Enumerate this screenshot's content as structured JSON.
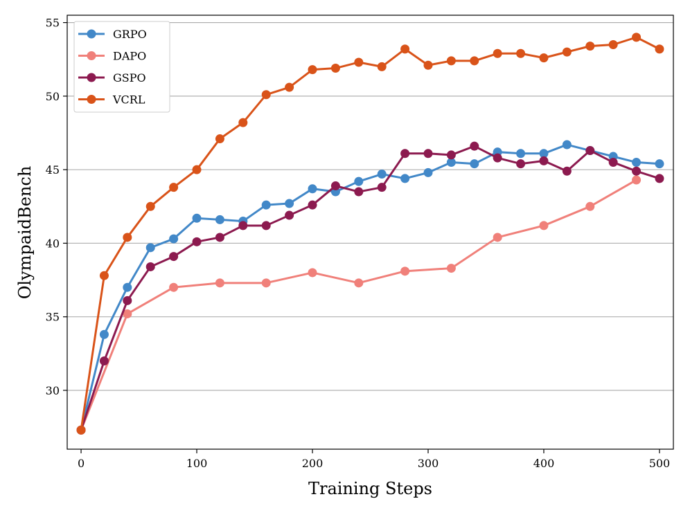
{
  "chart_data": {
    "type": "line",
    "title": "",
    "xlabel": "Training Steps",
    "ylabel": "OlympaidBench",
    "xlim": [
      -12,
      512
    ],
    "ylim": [
      26.0,
      55.5
    ],
    "xticks": [
      0,
      100,
      200,
      300,
      400,
      500
    ],
    "yticks": [
      30,
      35,
      40,
      45,
      50,
      55
    ],
    "grid": "horizontal",
    "legend_position": "top-left",
    "series": [
      {
        "name": "GRPO",
        "color": "#4288c8",
        "x": [
          0,
          20,
          40,
          60,
          80,
          100,
          120,
          140,
          160,
          180,
          200,
          220,
          240,
          260,
          280,
          300,
          320,
          340,
          360,
          380,
          400,
          420,
          440,
          460,
          480,
          500
        ],
        "y": [
          27.3,
          33.8,
          37.0,
          39.7,
          40.3,
          41.7,
          41.6,
          41.5,
          42.6,
          42.7,
          43.7,
          43.5,
          44.2,
          44.7,
          44.4,
          44.8,
          45.5,
          45.4,
          46.2,
          46.1,
          46.1,
          46.7,
          46.3,
          45.9,
          45.5,
          45.4
        ]
      },
      {
        "name": "DAPO",
        "color": "#f0807a",
        "x": [
          0,
          40,
          80,
          120,
          160,
          200,
          240,
          280,
          320,
          360,
          400,
          440,
          480
        ],
        "y": [
          27.3,
          35.2,
          37.0,
          37.3,
          37.3,
          38.0,
          37.3,
          38.1,
          38.3,
          40.4,
          41.2,
          42.5,
          44.3
        ]
      },
      {
        "name": "GSPO",
        "color": "#8c1a4f",
        "x": [
          0,
          20,
          40,
          60,
          80,
          100,
          120,
          140,
          160,
          180,
          200,
          220,
          240,
          260,
          280,
          300,
          320,
          340,
          360,
          380,
          400,
          420,
          440,
          460,
          480,
          500
        ],
        "y": [
          27.3,
          32.0,
          36.1,
          38.4,
          39.1,
          40.1,
          40.4,
          41.2,
          41.2,
          41.9,
          42.6,
          43.9,
          43.5,
          43.8,
          46.1,
          46.1,
          46.0,
          46.6,
          45.8,
          45.4,
          45.6,
          44.9,
          46.3,
          45.5,
          44.9,
          44.4
        ]
      },
      {
        "name": "VCRL",
        "color": "#d95319",
        "x": [
          0,
          20,
          40,
          60,
          80,
          100,
          120,
          140,
          160,
          180,
          200,
          220,
          240,
          260,
          280,
          300,
          320,
          340,
          360,
          380,
          400,
          420,
          440,
          460,
          480,
          500
        ],
        "y": [
          27.3,
          37.8,
          40.4,
          42.5,
          43.8,
          45.0,
          47.1,
          48.2,
          50.1,
          50.6,
          51.8,
          51.9,
          52.3,
          52.0,
          53.2,
          52.1,
          52.4,
          52.4,
          52.9,
          52.9,
          52.6,
          53.0,
          53.4,
          53.5,
          54.0,
          53.2
        ]
      }
    ]
  }
}
